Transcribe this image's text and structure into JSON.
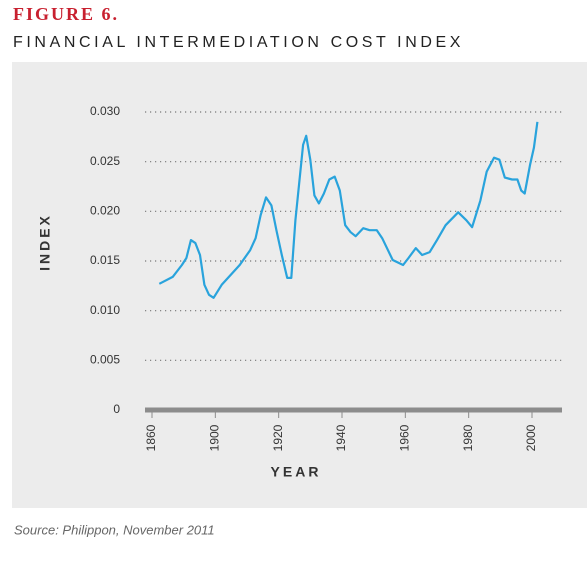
{
  "chart_data": {
    "type": "line",
    "figure_label": "FIGURE 6.",
    "title": "FINANCIAL INTERMEDIATION COST INDEX",
    "ylabel": "INDEX",
    "xlabel": "YEAR",
    "source": "Source: Philippon, November 2011",
    "x": [
      1864.6,
      1873.1,
      1878.9,
      1881.7,
      1884.6,
      1887.4,
      1890.3,
      1893.1,
      1896,
      1898.9,
      1902,
      1904.3,
      1907.7,
      1911,
      1912.7,
      1914.3,
      1916,
      1917.7,
      1919.3,
      1921,
      1922.7,
      1924,
      1925.3,
      1927.7,
      1928.7,
      1930,
      1931.3,
      1932.7,
      1934.3,
      1936,
      1937.7,
      1939.3,
      1941,
      1942.7,
      1944.3,
      1946.7,
      1948.7,
      1951,
      1952.7,
      1956,
      1959.3,
      1961,
      1963.3,
      1965.3,
      1967.7,
      1970,
      1972.7,
      1976.7,
      1979.3,
      1981.1,
      1983.7,
      1985.7,
      1988,
      1989.7,
      1991.4,
      1993.7,
      1995.4,
      1996.6,
      1997.7,
      1999.4,
      2000.6,
      2001.7
    ],
    "series": [
      {
        "name": "Index",
        "color": "#29a3dc",
        "values": [
          0.0127,
          0.0134,
          0.0146,
          0.0153,
          0.0171,
          0.0168,
          0.0156,
          0.0126,
          0.0116,
          0.0113,
          0.0126,
          0.0134,
          0.0146,
          0.0161,
          0.0173,
          0.0196,
          0.0214,
          0.0206,
          0.0181,
          0.0156,
          0.0133,
          0.0133,
          0.0191,
          0.0267,
          0.0276,
          0.0252,
          0.0216,
          0.0208,
          0.0218,
          0.0232,
          0.0235,
          0.0221,
          0.0186,
          0.0179,
          0.0175,
          0.0183,
          0.0181,
          0.0181,
          0.0173,
          0.0151,
          0.0146,
          0.0153,
          0.0163,
          0.0156,
          0.0159,
          0.0171,
          0.0186,
          0.0199,
          0.0191,
          0.0184,
          0.0211,
          0.024,
          0.0254,
          0.0252,
          0.0234,
          0.0232,
          0.0232,
          0.0221,
          0.0218,
          0.0247,
          0.0264,
          0.029
        ]
      }
    ],
    "ylim": [
      0,
      0.03
    ],
    "yticks": [
      0,
      0.005,
      {
        "value": 0.01,
        "label": "0.010"
      },
      0.015,
      {
        "value": 0.02,
        "label": "0.020"
      },
      0.025,
      {
        "value": 0.03,
        "label": "0.030"
      }
    ],
    "xticks": [
      1860,
      1900,
      1920,
      1940,
      1960,
      1980,
      2000
    ],
    "grid": true
  }
}
